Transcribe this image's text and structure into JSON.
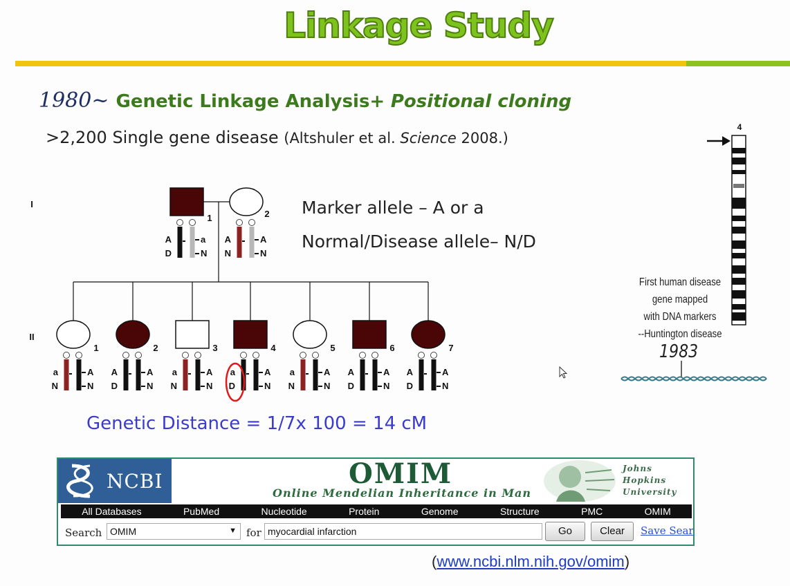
{
  "title": "Linkage Study",
  "line1": {
    "year": "1980~",
    "bold": "Genetic Linkage Analysis+",
    "italic": "Positional cloning"
  },
  "line2": {
    "prefix": ">2,200 Single gene disease",
    "cite_open": "(Altshuler et al.",
    "cite_journal": "Science",
    "cite_close": "2008.)"
  },
  "legend": {
    "marker": "Marker allele – A or a",
    "disease": "Normal/Disease allele– N/D"
  },
  "distance": "Genetic Distance  = 1/7x 100 = 14 cM",
  "pedigree": {
    "gen1": "I",
    "gen2": "II",
    "parents": [
      {
        "num": "1",
        "affected": true,
        "male": true,
        "top": [
          "A",
          "D"
        ],
        "bot": [
          "a",
          "N"
        ]
      },
      {
        "num": "2",
        "affected": false,
        "male": false,
        "top": [
          "A",
          "N"
        ],
        "bot": [
          "A",
          "N"
        ]
      }
    ],
    "children": [
      {
        "num": "1",
        "affected": false,
        "male": false,
        "a": [
          "a",
          "N"
        ],
        "b": [
          "A",
          "N"
        ]
      },
      {
        "num": "2",
        "affected": true,
        "male": false,
        "a": [
          "A",
          "D"
        ],
        "b": [
          "A",
          "N"
        ]
      },
      {
        "num": "3",
        "affected": false,
        "male": true,
        "a": [
          "a",
          "N"
        ],
        "b": [
          "A",
          "N"
        ]
      },
      {
        "num": "4",
        "affected": true,
        "male": true,
        "a": [
          "a",
          "D"
        ],
        "b": [
          "A",
          "N"
        ],
        "highlight": true
      },
      {
        "num": "5",
        "affected": false,
        "male": false,
        "a": [
          "a",
          "N"
        ],
        "b": [
          "A",
          "N"
        ]
      },
      {
        "num": "6",
        "affected": true,
        "male": true,
        "a": [
          "A",
          "D"
        ],
        "b": [
          "A",
          "N"
        ]
      },
      {
        "num": "7",
        "affected": true,
        "male": false,
        "a": [
          "A",
          "D"
        ],
        "b": [
          "A",
          "N"
        ]
      }
    ]
  },
  "chromosome": {
    "number": "4",
    "caption": [
      "First human disease",
      "gene mapped",
      "with DNA markers",
      "--Huntington disease"
    ],
    "year": "1983"
  },
  "omim": {
    "ncbi": "NCBI",
    "title": "OMIM",
    "subtitle": "Online Mendelian Inheritance in Man",
    "jhu": [
      "Johns",
      "Hopkins",
      "University"
    ],
    "nav": [
      "All Databases",
      "PubMed",
      "Nucleotide",
      "Protein",
      "Genome",
      "Structure",
      "PMC",
      "OMIM"
    ],
    "search_label": "Search",
    "database": "OMIM",
    "for_label": "for",
    "query": "myocardial infarction",
    "go": "Go",
    "clear": "Clear",
    "save": "Save Search"
  },
  "url_open": "(",
  "url": "www.ncbi.nlm.nih.gov/omim",
  "url_close": ")",
  "colors": {
    "affected": "#4a0606",
    "allele_red": "#8c2323",
    "title_green": "#7ec21e",
    "rule_yellow": "#f1c50e",
    "link_blue": "#1f3bbf",
    "distance_blue": "#3a3ad0"
  }
}
